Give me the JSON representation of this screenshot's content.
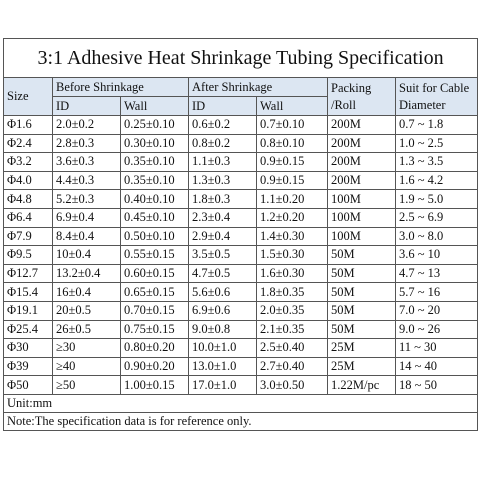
{
  "title": "3:1 Adhesive Heat Shrinkage Tubing Specification",
  "header": {
    "size": "Size",
    "before": "Before Shrinkage",
    "after": "After Shrinkage",
    "packing": [
      "Packing",
      "/Roll"
    ],
    "suit": [
      "Suit for Cable",
      "Diameter"
    ],
    "sub": [
      "ID",
      "Wall",
      "ID",
      "Wall"
    ]
  },
  "table": {
    "rows": [
      [
        "Φ1.6",
        "2.0±0.2",
        "0.25±0.10",
        "0.6±0.2",
        "0.7±0.10",
        "200M",
        "0.7 ~ 1.8"
      ],
      [
        "Φ2.4",
        "2.8±0.3",
        "0.30±0.10",
        "0.8±0.2",
        "0.8±0.10",
        "200M",
        "1.0 ~ 2.5"
      ],
      [
        "Φ3.2",
        "3.6±0.3",
        "0.35±0.10",
        "1.1±0.3",
        "0.9±0.15",
        "200M",
        "1.3 ~ 3.5"
      ],
      [
        "Φ4.0",
        "4.4±0.3",
        "0.35±0.10",
        "1.3±0.3",
        "0.9±0.15",
        "200M",
        "1.6 ~ 4.2"
      ],
      [
        "Φ4.8",
        "5.2±0.3",
        "0.40±0.10",
        "1.8±0.3",
        "1.1±0.20",
        "100M",
        "1.9 ~ 5.0"
      ],
      [
        "Φ6.4",
        "6.9±0.4",
        "0.45±0.10",
        "2.3±0.4",
        "1.2±0.20",
        "100M",
        "2.5 ~ 6.9"
      ],
      [
        "Φ7.9",
        "8.4±0.4",
        "0.50±0.10",
        "2.9±0.4",
        "1.4±0.30",
        "100M",
        "3.0 ~ 8.0"
      ],
      [
        "Φ9.5",
        "10±0.4",
        "0.55±0.15",
        "3.5±0.5",
        "1.5±0.30",
        "50M",
        "3.6 ~ 10"
      ],
      [
        "Φ12.7",
        "13.2±0.4",
        "0.60±0.15",
        "4.7±0.5",
        "1.6±0.30",
        "50M",
        "4.7 ~ 13"
      ],
      [
        "Φ15.4",
        "16±0.4",
        "0.65±0.15",
        "5.6±0.6",
        "1.8±0.35",
        "50M",
        "5.7 ~ 16"
      ],
      [
        "Φ19.1",
        "20±0.5",
        "0.70±0.15",
        "6.9±0.6",
        "2.0±0.35",
        "50M",
        "7.0 ~ 20"
      ],
      [
        "Φ25.4",
        "26±0.5",
        "0.75±0.15",
        "9.0±0.8",
        "2.1±0.35",
        "50M",
        "9.0 ~ 26"
      ],
      [
        "Φ30",
        "≥30",
        "0.80±0.20",
        "10.0±1.0",
        "2.5±0.40",
        "25M",
        "11 ~ 30"
      ],
      [
        "Φ39",
        "≥40",
        "0.90±0.20",
        "13.0±1.0",
        "2.7±0.40",
        "25M",
        "14 ~ 40"
      ],
      [
        "Φ50",
        "≥50",
        "1.00±0.15",
        "17.0±1.0",
        "3.0±0.50",
        "1.22M/pc",
        "18 ~ 50"
      ]
    ]
  },
  "unit": "Unit:mm",
  "note": "Note:The specification data is for reference only."
}
